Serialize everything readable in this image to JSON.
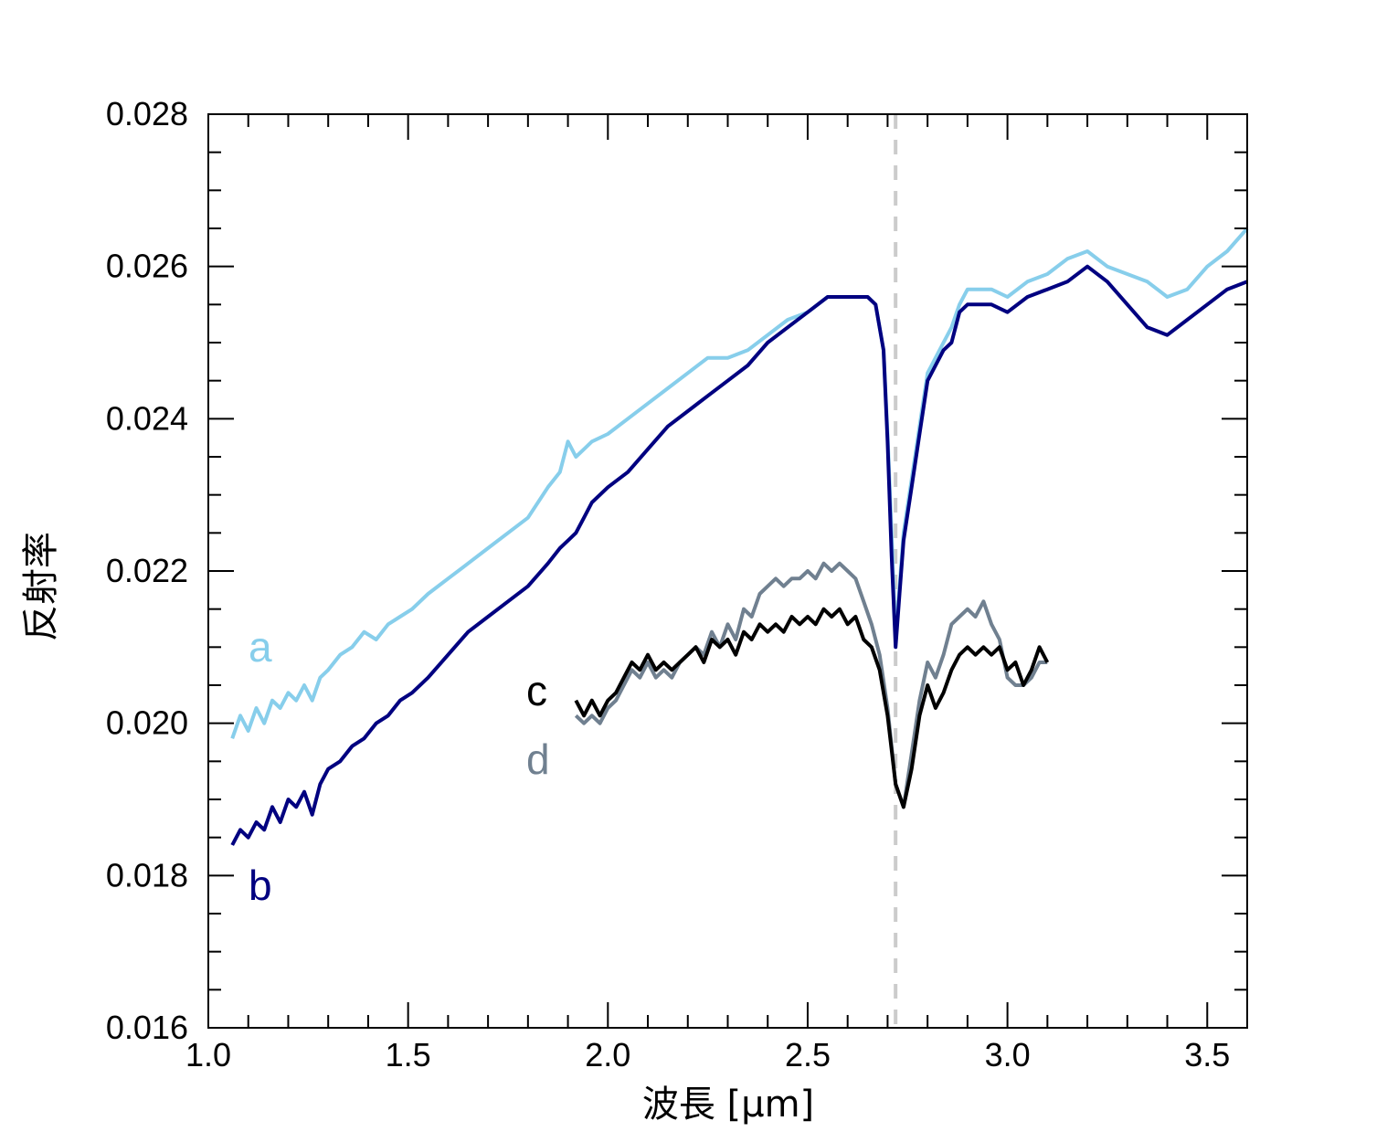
{
  "chart_data": {
    "type": "line",
    "title": "",
    "xlabel": "波長 [μm]",
    "ylabel": "反射率",
    "xlim": [
      1.0,
      3.6
    ],
    "ylim": [
      0.016,
      0.028
    ],
    "x_ticks": [
      "1.0",
      "1.5",
      "2.0",
      "2.5",
      "3.0",
      "3.5"
    ],
    "x_tick_values": [
      1.0,
      1.5,
      2.0,
      2.5,
      3.0,
      3.5
    ],
    "y_ticks": [
      "0.016",
      "0.018",
      "0.020",
      "0.022",
      "0.024",
      "0.026",
      "0.028"
    ],
    "y_tick_values": [
      0.016,
      0.018,
      0.02,
      0.022,
      0.024,
      0.026,
      0.028
    ],
    "grid": false,
    "reference_line": {
      "x": 2.72,
      "style": "dashed",
      "color": "#cccccc"
    },
    "series": [
      {
        "name": "a",
        "color": "#87ceeb",
        "x": [
          1.06,
          1.08,
          1.1,
          1.12,
          1.14,
          1.16,
          1.18,
          1.2,
          1.22,
          1.24,
          1.26,
          1.28,
          1.3,
          1.33,
          1.36,
          1.39,
          1.42,
          1.45,
          1.48,
          1.51,
          1.55,
          1.6,
          1.65,
          1.7,
          1.75,
          1.8,
          1.85,
          1.88,
          1.9,
          1.92,
          1.94,
          1.96,
          2.0,
          2.05,
          2.1,
          2.15,
          2.2,
          2.25,
          2.3,
          2.35,
          2.4,
          2.45,
          2.5,
          2.55,
          2.58,
          2.62,
          2.65,
          2.67,
          2.69,
          2.7,
          2.71,
          2.72,
          2.73,
          2.74,
          2.76,
          2.78,
          2.8,
          2.82,
          2.84,
          2.86,
          2.88,
          2.9,
          2.93,
          2.96,
          3.0,
          3.05,
          3.1,
          3.15,
          3.2,
          3.25,
          3.3,
          3.35,
          3.4,
          3.45,
          3.5,
          3.55,
          3.6
        ],
        "y": [
          0.0198,
          0.0201,
          0.0199,
          0.0202,
          0.02,
          0.0203,
          0.0202,
          0.0204,
          0.0203,
          0.0205,
          0.0203,
          0.0206,
          0.0207,
          0.0209,
          0.021,
          0.0212,
          0.0211,
          0.0213,
          0.0214,
          0.0215,
          0.0217,
          0.0219,
          0.0221,
          0.0223,
          0.0225,
          0.0227,
          0.0231,
          0.0233,
          0.0237,
          0.0235,
          0.0236,
          0.0237,
          0.0238,
          0.024,
          0.0242,
          0.0244,
          0.0246,
          0.0248,
          0.0248,
          0.0249,
          0.0251,
          0.0253,
          0.0254,
          0.0256,
          0.0256,
          0.0256,
          0.0256,
          0.0255,
          0.0249,
          0.0238,
          0.0225,
          0.0211,
          0.0218,
          0.0225,
          0.0232,
          0.0239,
          0.0246,
          0.0248,
          0.025,
          0.0252,
          0.0255,
          0.0257,
          0.0257,
          0.0257,
          0.0256,
          0.0258,
          0.0259,
          0.0261,
          0.0262,
          0.026,
          0.0259,
          0.0258,
          0.0256,
          0.0257,
          0.026,
          0.0262,
          0.0265
        ]
      },
      {
        "name": "b",
        "color": "#000080",
        "x": [
          1.06,
          1.08,
          1.1,
          1.12,
          1.14,
          1.16,
          1.18,
          1.2,
          1.22,
          1.24,
          1.26,
          1.28,
          1.3,
          1.33,
          1.36,
          1.39,
          1.42,
          1.45,
          1.48,
          1.51,
          1.55,
          1.6,
          1.65,
          1.7,
          1.75,
          1.8,
          1.85,
          1.88,
          1.9,
          1.92,
          1.94,
          1.96,
          2.0,
          2.05,
          2.1,
          2.15,
          2.2,
          2.25,
          2.3,
          2.35,
          2.4,
          2.45,
          2.5,
          2.55,
          2.58,
          2.62,
          2.65,
          2.67,
          2.69,
          2.7,
          2.71,
          2.72,
          2.73,
          2.74,
          2.76,
          2.78,
          2.8,
          2.82,
          2.84,
          2.86,
          2.88,
          2.9,
          2.93,
          2.96,
          3.0,
          3.05,
          3.1,
          3.15,
          3.2,
          3.25,
          3.3,
          3.35,
          3.4,
          3.45,
          3.5,
          3.55,
          3.6
        ],
        "y": [
          0.0184,
          0.0186,
          0.0185,
          0.0187,
          0.0186,
          0.0189,
          0.0187,
          0.019,
          0.0189,
          0.0191,
          0.0188,
          0.0192,
          0.0194,
          0.0195,
          0.0197,
          0.0198,
          0.02,
          0.0201,
          0.0203,
          0.0204,
          0.0206,
          0.0209,
          0.0212,
          0.0214,
          0.0216,
          0.0218,
          0.0221,
          0.0223,
          0.0224,
          0.0225,
          0.0227,
          0.0229,
          0.0231,
          0.0233,
          0.0236,
          0.0239,
          0.0241,
          0.0243,
          0.0245,
          0.0247,
          0.025,
          0.0252,
          0.0254,
          0.0256,
          0.0256,
          0.0256,
          0.0256,
          0.0255,
          0.0249,
          0.0237,
          0.0222,
          0.021,
          0.0217,
          0.0224,
          0.0231,
          0.0238,
          0.0245,
          0.0247,
          0.0249,
          0.025,
          0.0254,
          0.0255,
          0.0255,
          0.0255,
          0.0254,
          0.0256,
          0.0257,
          0.0258,
          0.026,
          0.0258,
          0.0255,
          0.0252,
          0.0251,
          0.0253,
          0.0255,
          0.0257,
          0.0258
        ]
      },
      {
        "name": "c",
        "color": "#000000",
        "x": [
          1.92,
          1.94,
          1.96,
          1.98,
          2.0,
          2.02,
          2.04,
          2.06,
          2.08,
          2.1,
          2.12,
          2.14,
          2.16,
          2.18,
          2.2,
          2.22,
          2.24,
          2.26,
          2.28,
          2.3,
          2.32,
          2.34,
          2.36,
          2.38,
          2.4,
          2.42,
          2.44,
          2.46,
          2.48,
          2.5,
          2.52,
          2.54,
          2.56,
          2.58,
          2.6,
          2.62,
          2.64,
          2.66,
          2.68,
          2.7,
          2.72,
          2.74,
          2.76,
          2.78,
          2.8,
          2.82,
          2.84,
          2.86,
          2.88,
          2.9,
          2.92,
          2.94,
          2.96,
          2.98,
          3.0,
          3.02,
          3.04,
          3.06,
          3.08,
          3.1
        ],
        "y": [
          0.0203,
          0.0201,
          0.0203,
          0.0201,
          0.0203,
          0.0204,
          0.0206,
          0.0208,
          0.0207,
          0.0209,
          0.0207,
          0.0208,
          0.0207,
          0.0208,
          0.0209,
          0.021,
          0.0208,
          0.0211,
          0.021,
          0.0211,
          0.0209,
          0.0212,
          0.0211,
          0.0213,
          0.0212,
          0.0213,
          0.0212,
          0.0214,
          0.0213,
          0.0214,
          0.0213,
          0.0215,
          0.0214,
          0.0215,
          0.0213,
          0.0214,
          0.0211,
          0.021,
          0.0207,
          0.0201,
          0.0192,
          0.0189,
          0.0194,
          0.0201,
          0.0205,
          0.0202,
          0.0204,
          0.0207,
          0.0209,
          0.021,
          0.0209,
          0.021,
          0.0209,
          0.021,
          0.0207,
          0.0208,
          0.0205,
          0.0207,
          0.021,
          0.0208
        ]
      },
      {
        "name": "d",
        "color": "#708090",
        "x": [
          1.92,
          1.94,
          1.96,
          1.98,
          2.0,
          2.02,
          2.04,
          2.06,
          2.08,
          2.1,
          2.12,
          2.14,
          2.16,
          2.18,
          2.2,
          2.22,
          2.24,
          2.26,
          2.28,
          2.3,
          2.32,
          2.34,
          2.36,
          2.38,
          2.4,
          2.42,
          2.44,
          2.46,
          2.48,
          2.5,
          2.52,
          2.54,
          2.56,
          2.58,
          2.6,
          2.62,
          2.64,
          2.66,
          2.68,
          2.7,
          2.72,
          2.74,
          2.76,
          2.78,
          2.8,
          2.82,
          2.84,
          2.86,
          2.88,
          2.9,
          2.92,
          2.94,
          2.96,
          2.98,
          3.0,
          3.02,
          3.04,
          3.06,
          3.08,
          3.1
        ],
        "y": [
          0.0201,
          0.02,
          0.0201,
          0.02,
          0.0202,
          0.0203,
          0.0205,
          0.0207,
          0.0206,
          0.0208,
          0.0206,
          0.0207,
          0.0206,
          0.0208,
          0.0209,
          0.021,
          0.0209,
          0.0212,
          0.021,
          0.0213,
          0.0211,
          0.0215,
          0.0214,
          0.0217,
          0.0218,
          0.0219,
          0.0218,
          0.0219,
          0.0219,
          0.022,
          0.0219,
          0.0221,
          0.022,
          0.0221,
          0.022,
          0.0219,
          0.0216,
          0.0213,
          0.0209,
          0.0202,
          0.0192,
          0.0189,
          0.0196,
          0.0203,
          0.0208,
          0.0206,
          0.0209,
          0.0213,
          0.0214,
          0.0215,
          0.0214,
          0.0216,
          0.0213,
          0.0211,
          0.0206,
          0.0205,
          0.0205,
          0.0206,
          0.0208,
          0.0208
        ]
      }
    ]
  }
}
